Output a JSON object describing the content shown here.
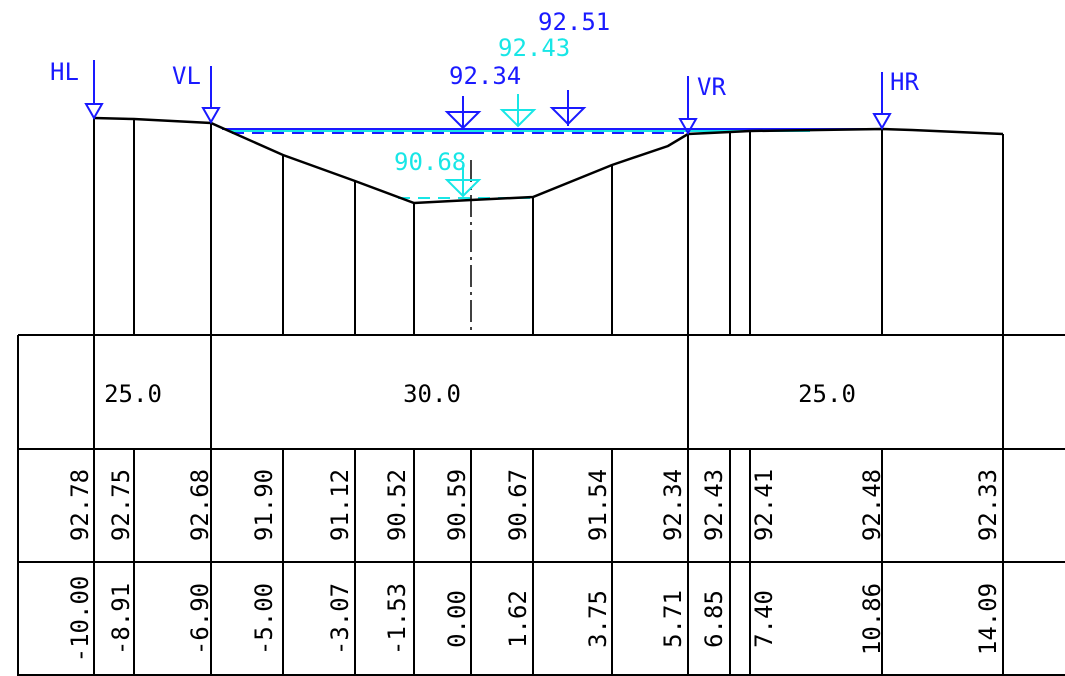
{
  "colors": {
    "black": "#000000",
    "blue": "#1a1aff",
    "cyan": "#18e6e6"
  },
  "markers": {
    "hl": "HL",
    "vl": "VL",
    "vr": "VR",
    "hr": "HR"
  },
  "water_levels": {
    "wl_1": "92.34",
    "wl_2": "92.43",
    "wl_3": "92.51",
    "wl_low": "90.68"
  },
  "widths": [
    "25.0",
    "30.0",
    "25.0"
  ],
  "elevations": [
    "92.78",
    "92.75",
    "92.68",
    "91.90",
    "91.12",
    "90.52",
    "90.59",
    "90.67",
    "91.54",
    "92.34",
    "92.43",
    "92.41",
    "92.48",
    "92.33"
  ],
  "stations": [
    "-10.00",
    "-8.91",
    "-6.90",
    "-5.00",
    "-3.07",
    "-1.53",
    "0.00",
    "1.62",
    "3.75",
    "5.71",
    "6.85",
    "7.40",
    "10.86",
    "14.09"
  ]
}
